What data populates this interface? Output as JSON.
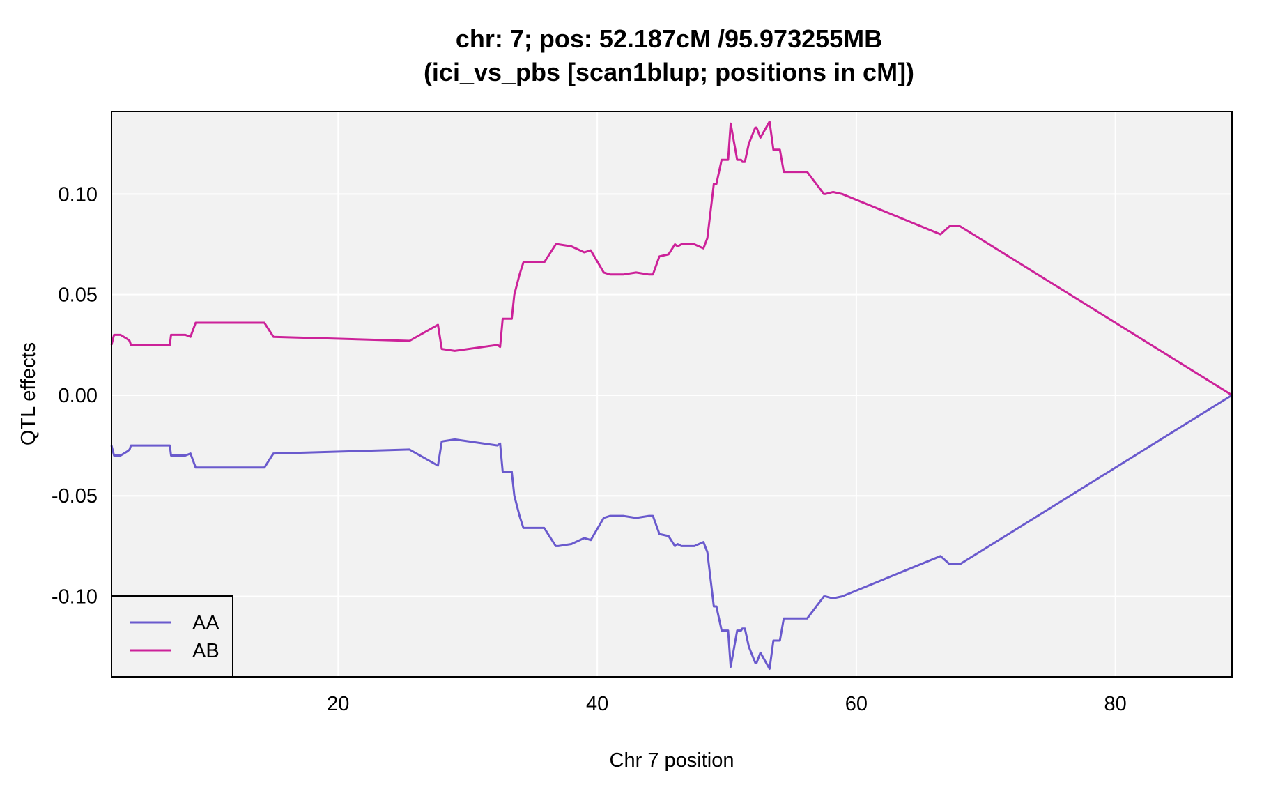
{
  "chart_data": {
    "type": "line",
    "title": "chr: 7; pos: 52.187cM /95.973255MB",
    "subtitle": "(ici_vs_pbs [scan1blup; positions in cM])",
    "xlabel": "Chr 7 position",
    "ylabel": "QTL effects",
    "xlim": [
      2.5,
      89
    ],
    "ylim": [
      -0.14,
      0.141
    ],
    "x_ticks": [
      20,
      40,
      60,
      80
    ],
    "x_tick_labels": [
      "20",
      "40",
      "60",
      "80"
    ],
    "y_ticks": [
      -0.1,
      -0.05,
      0.0,
      0.05,
      0.1
    ],
    "y_tick_labels": [
      "-0.10",
      "-0.05",
      "0.00",
      "0.05",
      "0.10"
    ],
    "grid": true,
    "legend_position": "bottom-left",
    "background_color": "#f2f2f2",
    "x": [
      2.5,
      2.7,
      2.8,
      3.2,
      3.7,
      3.9,
      4.0,
      5.0,
      7.0,
      7.1,
      8.2,
      8.6,
      9.0,
      11.0,
      13.0,
      14.0,
      14.3,
      15.0,
      25.5,
      27.7,
      28.0,
      29.0,
      32.3,
      32.5,
      32.7,
      33.4,
      33.6,
      34.0,
      34.3,
      35.9,
      36.8,
      37.0,
      38.0,
      39.0,
      39.5,
      40.5,
      41.0,
      42.0,
      43.0,
      44.0,
      44.3,
      44.8,
      45.5,
      46.0,
      46.2,
      46.5,
      47.0,
      47.5,
      48.2,
      48.5,
      49.0,
      49.2,
      49.6,
      50.1,
      50.3,
      50.8,
      51.1,
      51.2,
      51.4,
      51.7,
      52.2,
      52.3,
      52.6,
      53.3,
      53.6,
      54.1,
      54.4,
      56.1,
      56.2,
      57.5,
      57.6,
      58.2,
      58.9,
      66.5,
      67.2,
      68.0,
      89.0
    ],
    "series": [
      {
        "name": "AA",
        "color": "#6a5acd",
        "values": [
          -0.025,
          -0.03,
          -0.03,
          -0.03,
          -0.028,
          -0.027,
          -0.025,
          -0.025,
          -0.025,
          -0.03,
          -0.03,
          -0.029,
          -0.036,
          -0.036,
          -0.036,
          -0.036,
          -0.036,
          -0.029,
          -0.027,
          -0.035,
          -0.023,
          -0.022,
          -0.025,
          -0.024,
          -0.038,
          -0.038,
          -0.05,
          -0.06,
          -0.066,
          -0.066,
          -0.075,
          -0.075,
          -0.074,
          -0.071,
          -0.072,
          -0.061,
          -0.06,
          -0.06,
          -0.061,
          -0.06,
          -0.06,
          -0.069,
          -0.07,
          -0.075,
          -0.074,
          -0.075,
          -0.075,
          -0.075,
          -0.073,
          -0.078,
          -0.105,
          -0.105,
          -0.117,
          -0.117,
          -0.135,
          -0.117,
          -0.117,
          -0.116,
          -0.116,
          -0.125,
          -0.133,
          -0.133,
          -0.128,
          -0.136,
          -0.122,
          -0.122,
          -0.111,
          -0.111,
          -0.111,
          -0.1,
          -0.1,
          -0.101,
          -0.1,
          -0.08,
          -0.084,
          -0.084,
          0.0
        ]
      },
      {
        "name": "AB",
        "color": "#cc2299",
        "values": [
          0.025,
          0.03,
          0.03,
          0.03,
          0.028,
          0.027,
          0.025,
          0.025,
          0.025,
          0.03,
          0.03,
          0.029,
          0.036,
          0.036,
          0.036,
          0.036,
          0.036,
          0.029,
          0.027,
          0.035,
          0.023,
          0.022,
          0.025,
          0.024,
          0.038,
          0.038,
          0.05,
          0.06,
          0.066,
          0.066,
          0.075,
          0.075,
          0.074,
          0.071,
          0.072,
          0.061,
          0.06,
          0.06,
          0.061,
          0.06,
          0.06,
          0.069,
          0.07,
          0.075,
          0.074,
          0.075,
          0.075,
          0.075,
          0.073,
          0.078,
          0.105,
          0.105,
          0.117,
          0.117,
          0.135,
          0.117,
          0.117,
          0.116,
          0.116,
          0.125,
          0.133,
          0.133,
          0.128,
          0.136,
          0.122,
          0.122,
          0.111,
          0.111,
          0.111,
          0.1,
          0.1,
          0.101,
          0.1,
          0.08,
          0.084,
          0.084,
          0.0
        ]
      }
    ]
  }
}
